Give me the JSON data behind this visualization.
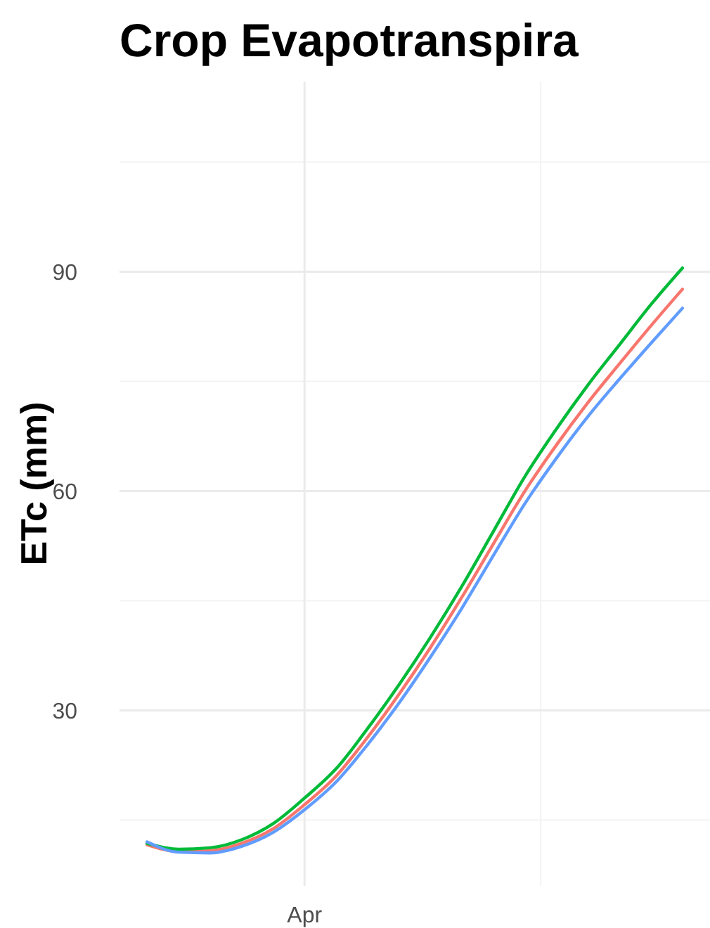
{
  "chart_data": {
    "type": "line",
    "title": "Crop Evapotranspira",
    "ylabel": "ETc (mm)",
    "categories": [
      null,
      null,
      null,
      null,
      null,
      "Apr",
      null,
      null,
      null,
      null,
      null,
      null,
      null,
      null,
      null,
      null,
      null,
      null
    ],
    "series": [
      {
        "color": "#f8766d",
        "values": [
          11.6,
          10.7,
          10.8,
          11.8,
          13.8,
          17.1,
          21,
          26.3,
          32.2,
          38.6,
          45.5,
          52.8,
          60,
          66.3,
          72.1,
          77.4,
          82.6,
          87.6
        ]
      },
      {
        "color": "#00ba38",
        "values": [
          11.8,
          11,
          11.2,
          12.3,
          14.5,
          18,
          22,
          27.5,
          33.5,
          40,
          47,
          54.5,
          62,
          68.5,
          74.5,
          80,
          85.5,
          90.5
        ]
      },
      {
        "color": "#619cff",
        "values": [
          12,
          10.6,
          10.5,
          11.4,
          13.3,
          16.4,
          20.2,
          25.3,
          31,
          37.3,
          44,
          51.2,
          58.3,
          64.5,
          70.2,
          75.3,
          80.2,
          85
        ]
      }
    ],
    "ylim": [
      6,
      116
    ],
    "yticks": [
      30,
      60,
      90
    ],
    "grid": true,
    "marker": "none",
    "line_style": "solid"
  }
}
